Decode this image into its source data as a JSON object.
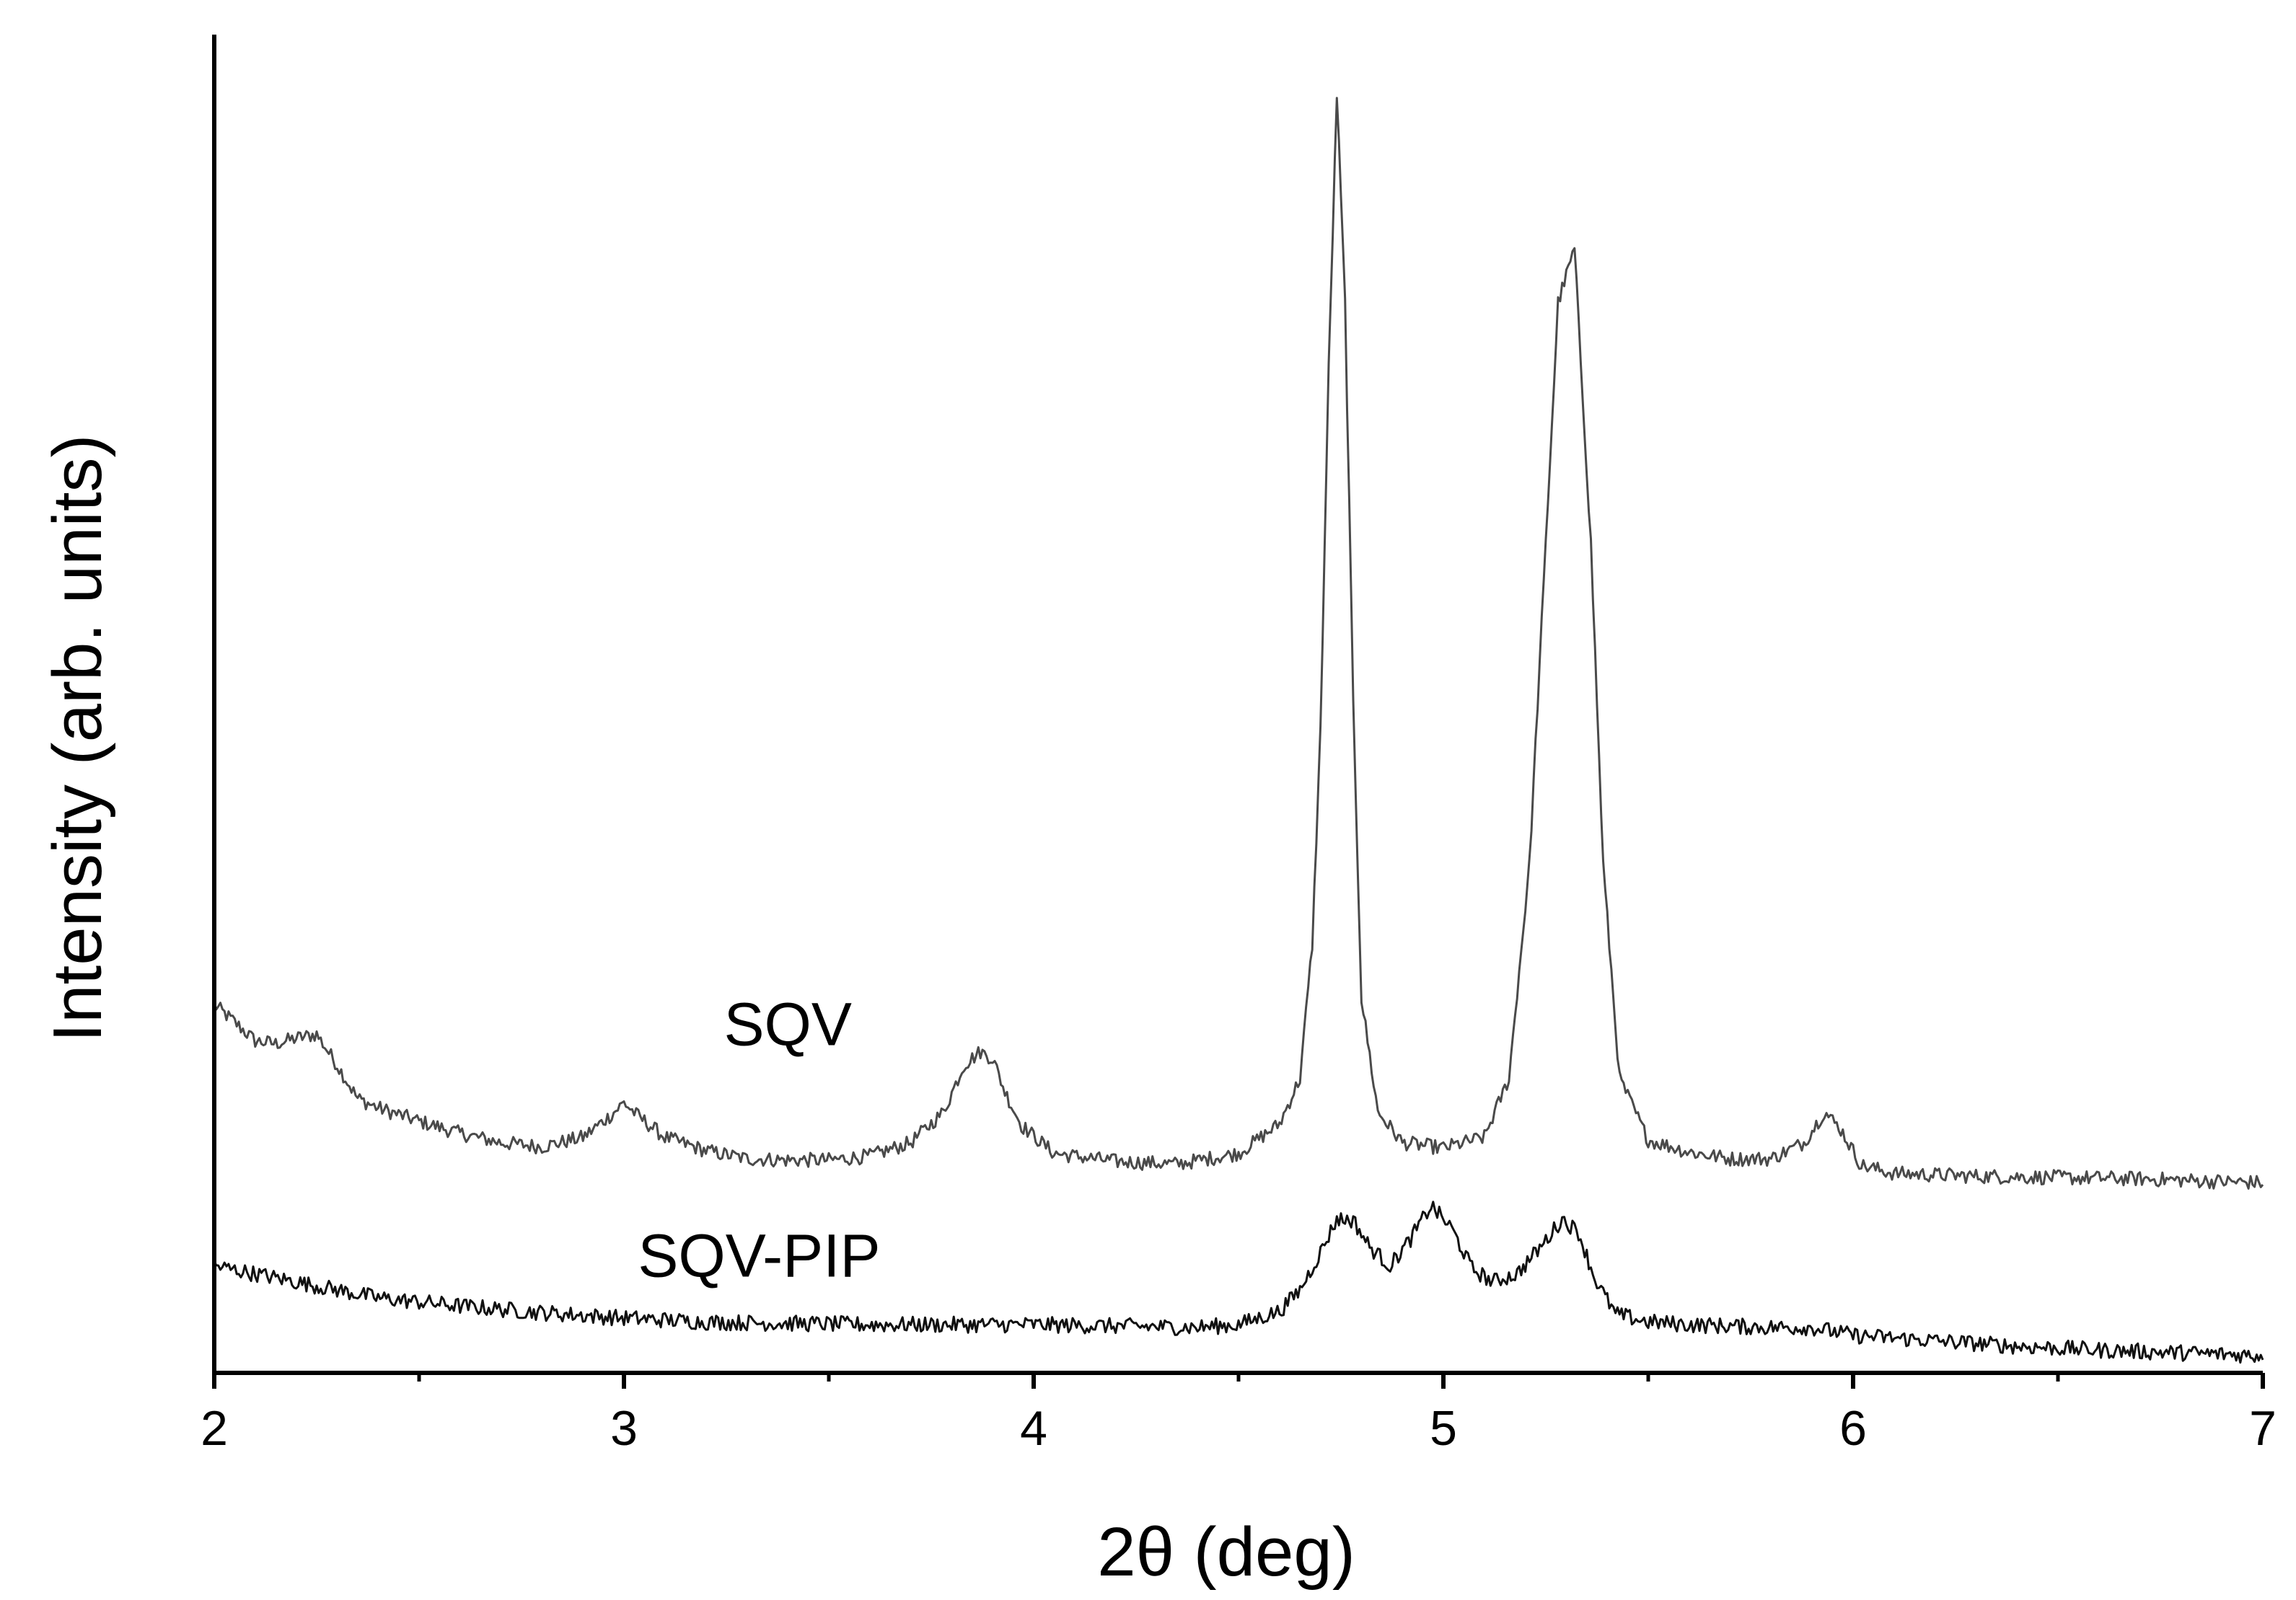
{
  "chart_data": {
    "type": "line",
    "title": "",
    "xlabel": "2θ (deg)",
    "ylabel": "Intensity (arb. units)",
    "xlim": [
      2,
      7
    ],
    "ylim": [
      0,
      100
    ],
    "xticks": [
      2,
      3,
      4,
      5,
      6,
      7
    ],
    "xtick_labels": [
      "2",
      "3",
      "4",
      "5",
      "6",
      "7"
    ],
    "minor_xticks": [
      2.5,
      3.5,
      4.5,
      5.5,
      6.5
    ],
    "y_tick_labels": false,
    "grid": false,
    "legend": "none",
    "series": [
      {
        "name": "SQV",
        "color": "#4a4a4a",
        "label": "SQV",
        "label_at": {
          "x": 3.4,
          "y": 24.5
        },
        "x": [
          2.0,
          2.05,
          2.1,
          2.15,
          2.2,
          2.25,
          2.3,
          2.35,
          2.4,
          2.5,
          2.6,
          2.7,
          2.8,
          2.9,
          2.97,
          3.0,
          3.03,
          3.1,
          3.2,
          3.3,
          3.4,
          3.5,
          3.6,
          3.7,
          3.78,
          3.83,
          3.87,
          3.9,
          3.93,
          3.97,
          4.05,
          4.2,
          4.35,
          4.5,
          4.6,
          4.65,
          4.68,
          4.7,
          4.72,
          4.74,
          4.76,
          4.78,
          4.8,
          4.84,
          4.9,
          5.0,
          5.1,
          5.16,
          5.21,
          5.25,
          5.28,
          5.32,
          5.36,
          5.39,
          5.43,
          5.5,
          5.6,
          5.7,
          5.8,
          5.88,
          5.93,
          5.97,
          6.02,
          6.1,
          6.3,
          6.5,
          6.7,
          6.9,
          7.0
        ],
        "y": [
          27.5,
          26.2,
          24.8,
          24.6,
          25.0,
          25.3,
          23.0,
          20.5,
          19.8,
          18.8,
          17.9,
          17.2,
          16.9,
          17.6,
          19.3,
          20.2,
          19.3,
          17.6,
          16.6,
          16.0,
          15.9,
          15.9,
          16.2,
          17.2,
          19.5,
          23.0,
          24.0,
          23.5,
          21.0,
          18.5,
          16.4,
          15.8,
          15.6,
          16.4,
          18.6,
          22.0,
          32.0,
          48.0,
          75.0,
          95.5,
          80.0,
          50.0,
          28.0,
          19.5,
          17.2,
          16.8,
          17.6,
          22.0,
          38.0,
          62.0,
          80.0,
          84.0,
          62.0,
          38.0,
          22.0,
          17.4,
          16.5,
          16.0,
          16.0,
          17.2,
          19.5,
          18.2,
          15.5,
          14.9,
          14.7,
          14.6,
          14.5,
          14.3,
          14.2
        ],
        "noise": 0.55
      },
      {
        "name": "SQV-PIP",
        "color": "#111111",
        "label": "SQV-PIP",
        "label_at": {
          "x": 3.33,
          "y": 7.2
        },
        "x": [
          2.0,
          2.2,
          2.4,
          2.6,
          2.8,
          3.0,
          3.2,
          3.4,
          3.6,
          3.8,
          4.0,
          4.2,
          4.4,
          4.5,
          4.6,
          4.65,
          4.7,
          4.74,
          4.78,
          4.82,
          4.87,
          4.92,
          4.97,
          5.02,
          5.07,
          5.12,
          5.18,
          5.24,
          5.29,
          5.33,
          5.37,
          5.42,
          5.5,
          5.6,
          5.7,
          5.8,
          5.9,
          6.0,
          6.2,
          6.4,
          6.6,
          6.8,
          7.0
        ],
        "y": [
          8.0,
          6.8,
          5.6,
          5.0,
          4.5,
          4.1,
          3.8,
          3.7,
          3.6,
          3.6,
          3.6,
          3.5,
          3.4,
          3.6,
          4.6,
          6.2,
          9.0,
          11.5,
          11.4,
          9.4,
          8.0,
          10.0,
          12.5,
          10.8,
          7.8,
          6.8,
          7.4,
          9.5,
          11.5,
          10.5,
          7.0,
          4.4,
          3.8,
          3.6,
          3.5,
          3.4,
          3.4,
          2.8,
          2.4,
          2.0,
          1.7,
          1.5,
          1.3
        ],
        "noise": 0.6
      }
    ]
  }
}
